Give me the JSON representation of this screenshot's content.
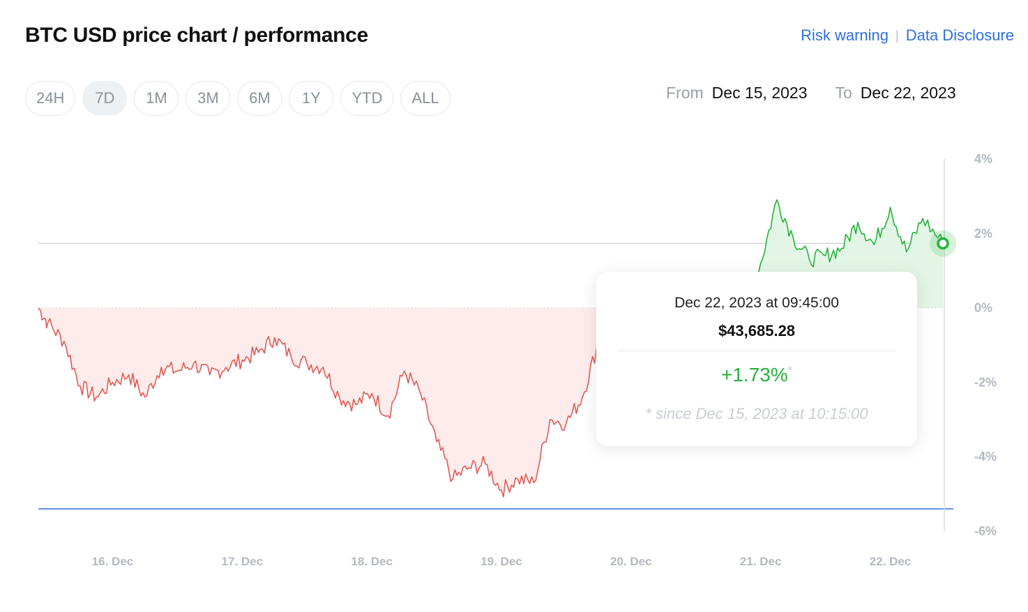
{
  "header": {
    "title": "BTC USD price chart / performance",
    "links": [
      "Risk warning",
      "Data Disclosure"
    ],
    "separator": "|"
  },
  "ranges": {
    "items": [
      "24H",
      "7D",
      "1M",
      "3M",
      "6M",
      "1Y",
      "YTD",
      "ALL"
    ],
    "selected": "7D"
  },
  "daterange": {
    "from_label": "From",
    "from_value": "Dec 15, 2023",
    "to_label": "To",
    "to_value": "Dec 22, 2023"
  },
  "tooltip": {
    "date": "Dec 22, 2023 at 09:45:00",
    "price": "$43,685.28",
    "change": "+1.73%",
    "asterisk": "*",
    "since": "* since Dec 15, 2023 at 10:15:00"
  },
  "colors": {
    "positive": "#22b33a",
    "positive_fill": "#e3f6e5",
    "negative": "#e05a56",
    "negative_fill": "#fdeceb",
    "min_line": "#2f6fe0",
    "link": "#2f6fe0"
  },
  "chart_data": {
    "type": "area",
    "title": "",
    "xlabel": "",
    "ylabel": "",
    "x_ticks": [
      "16. Dec",
      "17. Dec",
      "18. Dec",
      "19. Dec",
      "20. Dec",
      "21. Dec",
      "22. Dec"
    ],
    "y_ticks": [
      "4%",
      "2%",
      "0%",
      "-2%",
      "-4%",
      "-6%"
    ],
    "y_tick_values": [
      4,
      2,
      0,
      -2,
      -4,
      -6
    ],
    "ylim": [
      -6,
      4
    ],
    "xlim": [
      "Dec 15, 2023 10:15",
      "Dec 22, 2023 12:00"
    ],
    "baseline": 0,
    "current_value": 1.73,
    "min_value": -5.4,
    "grid": false,
    "series": [
      {
        "x": [
          "Dec 15 10:15",
          "Dec 15 12:00",
          "Dec 15 15:00",
          "Dec 15 18:00",
          "Dec 15 21:00",
          "Dec 16 00:00",
          "Dec 16 03:00",
          "Dec 16 06:00",
          "Dec 16 09:00",
          "Dec 16 12:00",
          "Dec 16 15:00",
          "Dec 16 18:00",
          "Dec 16 21:00",
          "Dec 17 00:00",
          "Dec 17 03:00",
          "Dec 17 06:00",
          "Dec 17 09:00",
          "Dec 17 12:00",
          "Dec 17 15:00",
          "Dec 17 18:00",
          "Dec 17 21:00",
          "Dec 18 00:00",
          "Dec 18 03:00",
          "Dec 18 06:00",
          "Dec 18 09:00",
          "Dec 18 12:00",
          "Dec 18 15:00",
          "Dec 18 18:00",
          "Dec 18 21:00",
          "Dec 19 00:00",
          "Dec 19 03:00",
          "Dec 19 06:00",
          "Dec 19 09:00",
          "Dec 19 12:00",
          "Dec 19 15:00",
          "Dec 19 18:00",
          "Dec 19 21:00",
          "Dec 20 00:00",
          "Dec 20 03:00",
          "Dec 20 06:00",
          "Dec 20 09:00",
          "Dec 20 12:00",
          "Dec 20 15:00",
          "Dec 20 18:00",
          "Dec 20 21:00",
          "Dec 21 00:00",
          "Dec 21 03:00",
          "Dec 21 06:00",
          "Dec 21 09:00",
          "Dec 21 12:00",
          "Dec 21 15:00",
          "Dec 21 18:00",
          "Dec 21 21:00",
          "Dec 22 00:00",
          "Dec 22 03:00",
          "Dec 22 06:00",
          "Dec 22 09:45"
        ],
        "values": [
          0.0,
          -0.4,
          -0.9,
          -2.1,
          -2.4,
          -2.0,
          -1.8,
          -2.4,
          -1.6,
          -1.7,
          -1.5,
          -1.8,
          -1.6,
          -1.4,
          -1.2,
          -0.8,
          -1.3,
          -1.5,
          -1.6,
          -2.4,
          -2.6,
          -2.3,
          -2.9,
          -1.7,
          -2.3,
          -3.6,
          -4.6,
          -4.3,
          -4.2,
          -4.9,
          -4.6,
          -4.7,
          -3.0,
          -3.1,
          -2.4,
          -0.9,
          -0.5,
          0.7,
          0.1,
          0.6,
          0.3,
          -0.3,
          -1.3,
          -1.0,
          -0.7,
          1.2,
          2.9,
          1.9,
          1.3,
          1.4,
          1.6,
          2.3,
          1.7,
          2.7,
          1.5,
          2.4,
          1.73
        ]
      }
    ]
  }
}
